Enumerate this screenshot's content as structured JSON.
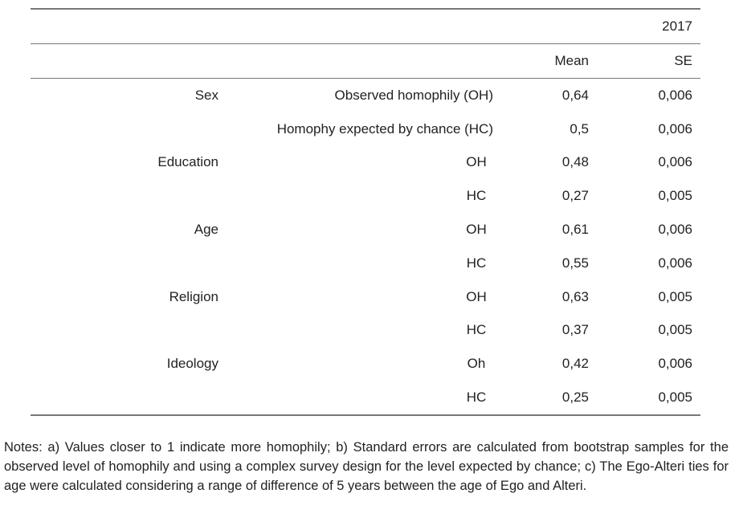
{
  "header": {
    "year": "2017",
    "mean_label": "Mean",
    "se_label": "SE"
  },
  "rows": [
    {
      "variable": "Sex",
      "measure": "Observed homophily (OH)",
      "mean": "0,64",
      "se": "0,006"
    },
    {
      "variable": "",
      "measure": "Homophy expected by chance (HC)",
      "mean": "0,5",
      "se": "0,006"
    },
    {
      "variable": "Education",
      "measure": "OH",
      "mean": "0,48",
      "se": "0,006"
    },
    {
      "variable": "",
      "measure": "HC",
      "mean": "0,27",
      "se": "0,005"
    },
    {
      "variable": "Age",
      "measure": "OH",
      "mean": "0,61",
      "se": "0,006"
    },
    {
      "variable": "",
      "measure": "HC",
      "mean": "0,55",
      "se": "0,006"
    },
    {
      "variable": "Religion",
      "measure": "OH",
      "mean": "0,63",
      "se": "0,005"
    },
    {
      "variable": "",
      "measure": "HC",
      "mean": "0,37",
      "se": "0,005"
    },
    {
      "variable": "Ideology",
      "measure": "Oh",
      "mean": "0,42",
      "se": "0,006"
    },
    {
      "variable": "",
      "measure": "HC",
      "mean": "0,25",
      "se": "0,005"
    }
  ],
  "notes": "Notes: a) Values closer to 1 indicate more homophily; b) Standard errors are calculated from bootstrap samples for the observed level of homophily and using a complex survey design for the level expected by chance; c) The Ego-Alteri ties for age were calculated considering a range of difference of 5 years between the age of Ego and Alteri."
}
